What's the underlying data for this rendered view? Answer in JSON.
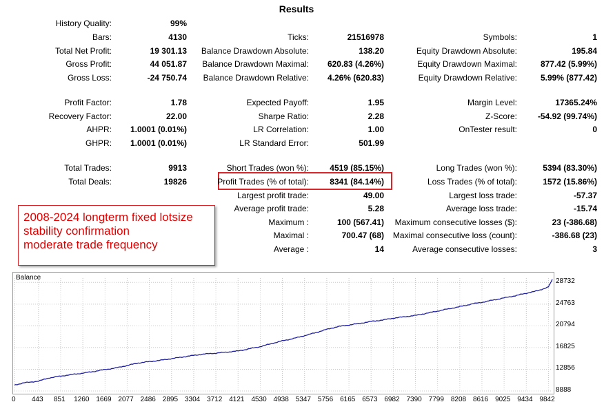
{
  "title": "Results",
  "stats": {
    "history_quality": {
      "label": "History Quality:",
      "value": "99%"
    },
    "bars": {
      "label": "Bars:",
      "value": "4130"
    },
    "ticks": {
      "label": "Ticks:",
      "value": "21516978"
    },
    "symbols": {
      "label": "Symbols:",
      "value": "1"
    },
    "total_net_profit": {
      "label": "Total Net Profit:",
      "value": "19 301.13"
    },
    "balance_dd_abs": {
      "label": "Balance Drawdown Absolute:",
      "value": "138.20"
    },
    "equity_dd_abs": {
      "label": "Equity Drawdown Absolute:",
      "value": "195.84"
    },
    "gross_profit": {
      "label": "Gross Profit:",
      "value": "44 051.87"
    },
    "balance_dd_max": {
      "label": "Balance Drawdown Maximal:",
      "value": "620.83 (4.26%)"
    },
    "equity_dd_max": {
      "label": "Equity Drawdown Maximal:",
      "value": "877.42 (5.99%)"
    },
    "gross_loss": {
      "label": "Gross Loss:",
      "value": "-24 750.74"
    },
    "balance_dd_rel": {
      "label": "Balance Drawdown Relative:",
      "value": "4.26% (620.83)"
    },
    "equity_dd_rel": {
      "label": "Equity Drawdown Relative:",
      "value": "5.99% (877.42)"
    },
    "profit_factor": {
      "label": "Profit Factor:",
      "value": "1.78"
    },
    "expected_payoff": {
      "label": "Expected Payoff:",
      "value": "1.95"
    },
    "margin_level": {
      "label": "Margin Level:",
      "value": "17365.24%"
    },
    "recovery_factor": {
      "label": "Recovery Factor:",
      "value": "22.00"
    },
    "sharpe_ratio": {
      "label": "Sharpe Ratio:",
      "value": "2.28"
    },
    "z_score": {
      "label": "Z-Score:",
      "value": "-54.92 (99.74%)"
    },
    "ahpr": {
      "label": "AHPR:",
      "value": "1.0001 (0.01%)"
    },
    "lr_correlation": {
      "label": "LR Correlation:",
      "value": "1.00"
    },
    "ontester": {
      "label": "OnTester result:",
      "value": "0"
    },
    "ghpr": {
      "label": "GHPR:",
      "value": "1.0001 (0.01%)"
    },
    "lr_std_error": {
      "label": "LR Standard Error:",
      "value": "501.99"
    },
    "total_trades": {
      "label": "Total Trades:",
      "value": "9913"
    },
    "short_trades": {
      "label": "Short Trades (won %):",
      "value": "4519 (85.15%)"
    },
    "long_trades": {
      "label": "Long Trades (won %):",
      "value": "5394 (83.30%)"
    },
    "total_deals": {
      "label": "Total Deals:",
      "value": "19826"
    },
    "profit_trades": {
      "label": "Profit Trades (% of total):",
      "value": "8341 (84.14%)"
    },
    "loss_trades": {
      "label": "Loss Trades (% of total):",
      "value": "1572 (15.86%)"
    },
    "largest_profit": {
      "label": "Largest profit trade:",
      "value": "49.00"
    },
    "largest_loss": {
      "label": "Largest loss trade:",
      "value": "-57.37"
    },
    "avg_profit": {
      "label": "Average profit trade:",
      "value": "5.28"
    },
    "avg_loss": {
      "label": "Average loss trade:",
      "value": "-15.74"
    },
    "max_consec_wins": {
      "label": "Maximum :",
      "value": "100 (567.41)"
    },
    "max_consec_losses": {
      "label": "Maximum consecutive losses ($):",
      "value": "23 (-386.68)"
    },
    "maximal_consec_profit": {
      "label": "Maximal :",
      "value": "700.47 (68)"
    },
    "maximal_consec_loss": {
      "label": "Maximal consecutive loss (count):",
      "value": "-386.68 (23)"
    },
    "avg_consec_wins": {
      "label": "Average :",
      "value": "14"
    },
    "avg_consec_losses": {
      "label": "Average consecutive losses:",
      "value": "3"
    }
  },
  "annotation": {
    "lines": [
      "2008-2024 longterm fixed lotsize",
      "stability confirmation",
      "moderate trade frequency"
    ],
    "color": "#e00000"
  },
  "highlight_color": "#d9262b",
  "chart_data": {
    "type": "line",
    "title": "Balance",
    "line_color": "#1f1fa0",
    "x_ticks": [
      "0",
      "443",
      "851",
      "1260",
      "1669",
      "2077",
      "2486",
      "2895",
      "3304",
      "3712",
      "4121",
      "4530",
      "4938",
      "5347",
      "5756",
      "6165",
      "6573",
      "6982",
      "7390",
      "7799",
      "8208",
      "8616",
      "9025",
      "9434",
      "9842"
    ],
    "y_ticks": [
      "28732",
      "24763",
      "20794",
      "16825",
      "12856",
      "8888"
    ],
    "xlim": [
      0,
      9913
    ],
    "ylim": [
      8888,
      29600
    ],
    "series": [
      {
        "x": [
          0,
          200,
          443,
          650,
          851,
          1060,
          1260,
          1460,
          1669,
          1870,
          2077,
          2280,
          2486,
          2690,
          2895,
          3100,
          3304,
          3510,
          3712,
          3920,
          4121,
          4330,
          4530,
          4740,
          4938,
          5150,
          5347,
          5550,
          5756,
          5960,
          6165,
          6370,
          6573,
          6780,
          6982,
          7190,
          7390,
          7600,
          7799,
          8000,
          8208,
          8410,
          8616,
          8820,
          9025,
          9230,
          9434,
          9640,
          9842,
          9913
        ],
        "values": [
          10000,
          10400,
          10700,
          11300,
          11600,
          11900,
          12150,
          12450,
          12800,
          13100,
          13550,
          14000,
          14250,
          14500,
          14800,
          15100,
          15400,
          15650,
          15800,
          16000,
          16200,
          16600,
          17000,
          17550,
          18050,
          18500,
          19000,
          19550,
          20150,
          20650,
          20950,
          21250,
          21600,
          21850,
          22200,
          22450,
          22700,
          23100,
          23500,
          23900,
          24300,
          24750,
          25100,
          25500,
          25900,
          26300,
          26750,
          27200,
          27900,
          29300
        ]
      }
    ]
  }
}
